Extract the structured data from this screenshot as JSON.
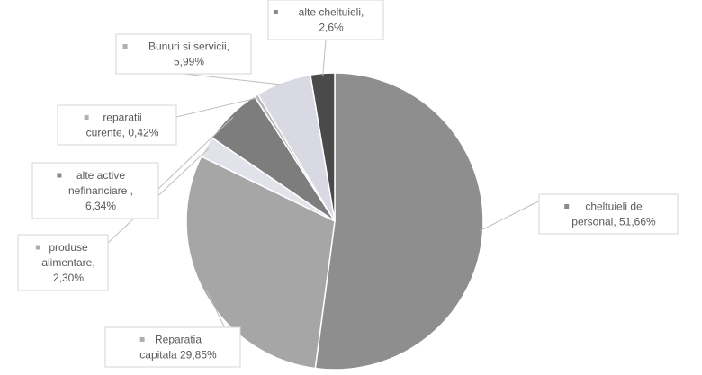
{
  "chart_data": {
    "type": "pie",
    "title": "",
    "slices": [
      {
        "label": "cheltuieli de personal",
        "value": 51.66,
        "display": "51,66%",
        "color": "#8e8e8e"
      },
      {
        "label": "Reparatia capitala",
        "value": 29.85,
        "display": "29,85%",
        "color": "#a6a6a6"
      },
      {
        "label": "produse alimentare",
        "value": 2.3,
        "display": "2,30%",
        "color": "#e2e2ea"
      },
      {
        "label": "alte active nefinanciare",
        "value": 6.34,
        "display": "6,34%",
        "color": "#7d7d7d"
      },
      {
        "label": "reparatii curente",
        "value": 0.42,
        "display": "0,42%",
        "color": "#b8b8b8"
      },
      {
        "label": "Bunuri si servicii",
        "value": 5.99,
        "display": "5,99%",
        "color": "#d9d9e3"
      },
      {
        "label": "alte cheltuieli",
        "value": 2.6,
        "display": "2,6%",
        "color": "#4a4a4a"
      }
    ],
    "labels": [
      {
        "lines": [
          "cheltuieli de",
          "personal, 51,66%"
        ]
      },
      {
        "lines": [
          "Reparatia",
          "capitala 29,85%"
        ]
      },
      {
        "lines": [
          "produse",
          "alimentare,",
          "2,30%"
        ]
      },
      {
        "lines": [
          "alte active",
          "nefinanciare ,",
          "6,34%"
        ]
      },
      {
        "lines": [
          "reparatii",
          "curente, 0,42%"
        ]
      },
      {
        "lines": [
          "Bunuri si servicii,",
          "5,99%"
        ]
      },
      {
        "lines": [
          "alte cheltuieli,",
          "2,6%"
        ]
      }
    ],
    "legend": "none (data labels with leader lines)"
  }
}
